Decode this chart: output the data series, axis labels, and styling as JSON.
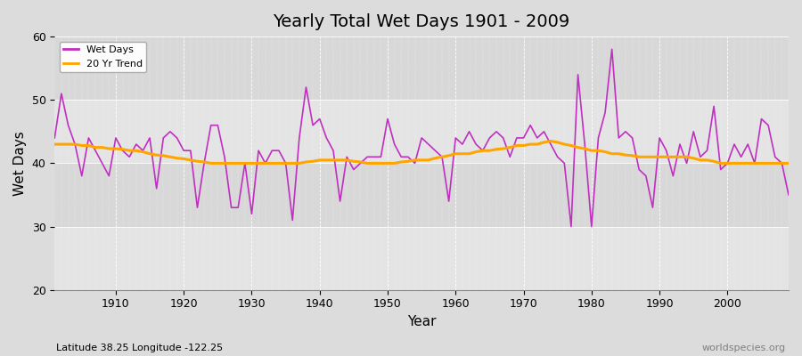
{
  "title": "Yearly Total Wet Days 1901 - 2009",
  "xlabel": "Year",
  "ylabel": "Wet Days",
  "subtitle": "Latitude 38.25 Longitude -122.25",
  "watermark": "worldspecies.org",
  "ylim": [
    20,
    60
  ],
  "xlim": [
    1901,
    2009
  ],
  "yticks": [
    20,
    30,
    40,
    50,
    60
  ],
  "xticks": [
    1910,
    1920,
    1930,
    1940,
    1950,
    1960,
    1970,
    1980,
    1990,
    2000
  ],
  "wet_days_color": "#c030c0",
  "trend_color": "#ffa500",
  "bg_color": "#dcdcdc",
  "band_color_light": "#e8e8e8",
  "legend_wet": "Wet Days",
  "legend_trend": "20 Yr Trend",
  "years": [
    1901,
    1902,
    1903,
    1904,
    1905,
    1906,
    1907,
    1908,
    1909,
    1910,
    1911,
    1912,
    1913,
    1914,
    1915,
    1916,
    1917,
    1918,
    1919,
    1920,
    1921,
    1922,
    1923,
    1924,
    1925,
    1926,
    1927,
    1928,
    1929,
    1930,
    1931,
    1932,
    1933,
    1934,
    1935,
    1936,
    1937,
    1938,
    1939,
    1940,
    1941,
    1942,
    1943,
    1944,
    1945,
    1946,
    1947,
    1948,
    1949,
    1950,
    1951,
    1952,
    1953,
    1954,
    1955,
    1956,
    1957,
    1958,
    1959,
    1960,
    1961,
    1962,
    1963,
    1964,
    1965,
    1966,
    1967,
    1968,
    1969,
    1970,
    1971,
    1972,
    1973,
    1974,
    1975,
    1976,
    1977,
    1978,
    1979,
    1980,
    1981,
    1982,
    1983,
    1984,
    1985,
    1986,
    1987,
    1988,
    1989,
    1990,
    1991,
    1992,
    1993,
    1994,
    1995,
    1996,
    1997,
    1998,
    1999,
    2000,
    2001,
    2002,
    2003,
    2004,
    2005,
    2006,
    2007,
    2008,
    2009
  ],
  "wet_days": [
    44,
    51,
    46,
    43,
    38,
    44,
    42,
    40,
    38,
    44,
    42,
    41,
    43,
    42,
    44,
    36,
    44,
    45,
    44,
    42,
    42,
    33,
    40,
    46,
    46,
    41,
    33,
    33,
    40,
    32,
    42,
    40,
    42,
    42,
    40,
    31,
    44,
    52,
    46,
    47,
    44,
    42,
    34,
    41,
    39,
    40,
    41,
    41,
    41,
    47,
    43,
    41,
    41,
    40,
    44,
    43,
    42,
    41,
    34,
    44,
    43,
    45,
    43,
    42,
    44,
    45,
    44,
    41,
    44,
    44,
    46,
    44,
    45,
    43,
    41,
    40,
    30,
    54,
    43,
    30,
    44,
    48,
    58,
    44,
    45,
    44,
    39,
    38,
    33,
    44,
    42,
    38,
    43,
    40,
    45,
    41,
    42,
    49,
    39,
    40,
    43,
    41,
    43,
    40,
    47,
    46,
    41,
    40,
    35
  ],
  "trend": [
    43.0,
    43.0,
    43.0,
    43.0,
    42.8,
    42.8,
    42.5,
    42.5,
    42.3,
    42.3,
    42.2,
    42.0,
    42.0,
    41.8,
    41.5,
    41.3,
    41.2,
    41.0,
    40.8,
    40.7,
    40.5,
    40.3,
    40.2,
    40.0,
    40.0,
    40.0,
    40.0,
    40.0,
    40.0,
    40.0,
    40.0,
    40.0,
    40.0,
    40.0,
    40.0,
    40.0,
    40.0,
    40.2,
    40.3,
    40.5,
    40.5,
    40.5,
    40.5,
    40.5,
    40.3,
    40.2,
    40.0,
    40.0,
    40.0,
    40.0,
    40.0,
    40.2,
    40.3,
    40.5,
    40.5,
    40.5,
    40.8,
    41.0,
    41.2,
    41.5,
    41.5,
    41.5,
    41.8,
    42.0,
    42.0,
    42.2,
    42.3,
    42.5,
    42.8,
    42.8,
    43.0,
    43.0,
    43.3,
    43.5,
    43.3,
    43.0,
    42.8,
    42.5,
    42.3,
    42.0,
    42.0,
    41.8,
    41.5,
    41.5,
    41.3,
    41.2,
    41.0,
    41.0,
    41.0,
    41.0,
    41.0,
    41.0,
    41.0,
    41.0,
    40.8,
    40.5,
    40.5,
    40.3,
    40.0,
    40.0,
    40.0,
    40.0,
    40.0,
    40.0,
    40.0,
    40.0,
    40.0,
    40.0,
    40.0
  ]
}
